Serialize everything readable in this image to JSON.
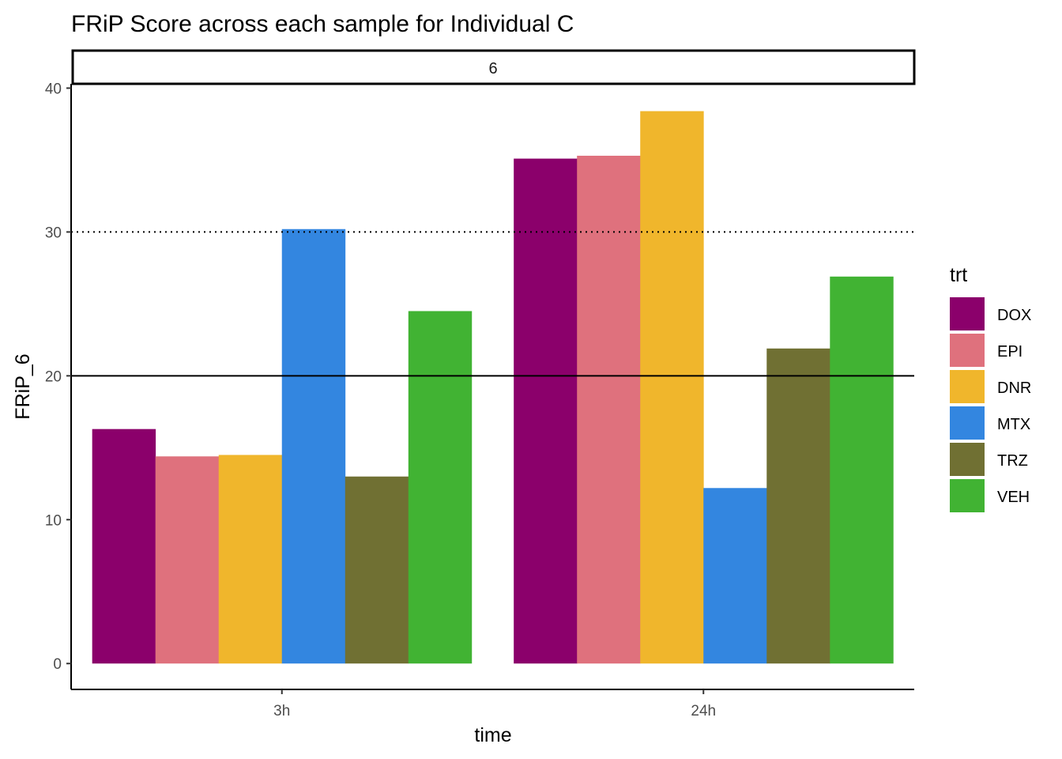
{
  "chart_data": {
    "type": "bar",
    "title": "FRiP Score across each sample for Individual C",
    "facet_label": "6",
    "xlabel": "time",
    "ylabel": "FRiP_6",
    "categories": [
      "3h",
      "24h"
    ],
    "ylim": [
      -1.8,
      40.3
    ],
    "yticks": [
      0,
      10,
      20,
      30,
      40
    ],
    "hlines": [
      {
        "y": 20,
        "style": "solid"
      },
      {
        "y": 30,
        "style": "dotted"
      }
    ],
    "legend": {
      "title": "trt",
      "position": "right"
    },
    "grid": false,
    "series": [
      {
        "name": "DOX",
        "color": "#8B006B",
        "values": [
          16.3,
          35.1
        ]
      },
      {
        "name": "EPI",
        "color": "#DF717D",
        "values": [
          14.4,
          35.3
        ]
      },
      {
        "name": "DNR",
        "color": "#F0B62C",
        "values": [
          14.5,
          38.4
        ]
      },
      {
        "name": "MTX",
        "color": "#3386E0",
        "values": [
          30.2,
          12.2
        ]
      },
      {
        "name": "TRZ",
        "color": "#707033",
        "values": [
          13.0,
          21.9
        ]
      },
      {
        "name": "VEH",
        "color": "#41B333",
        "values": [
          24.5,
          26.9
        ]
      }
    ]
  }
}
